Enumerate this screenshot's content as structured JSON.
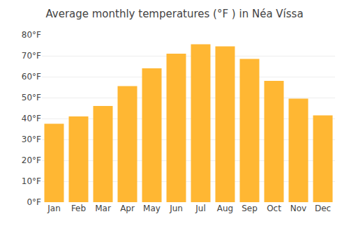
{
  "chart_data": {
    "type": "bar",
    "title": "Average monthly temperatures (°F ) in Néa Víssa",
    "categories": [
      "Jan",
      "Feb",
      "Mar",
      "Apr",
      "May",
      "Jun",
      "Jul",
      "Aug",
      "Sep",
      "Oct",
      "Nov",
      "Dec"
    ],
    "values": [
      37.5,
      41.0,
      46.0,
      55.5,
      64.0,
      71.0,
      75.5,
      74.5,
      68.5,
      58.0,
      49.5,
      41.5
    ],
    "color": "#FFB733",
    "ylim": [
      0,
      80
    ],
    "yticks": [
      {
        "value": 0,
        "label": "0°F"
      },
      {
        "value": 10,
        "label": "10°F"
      },
      {
        "value": 20,
        "label": "20°F"
      },
      {
        "value": 30,
        "label": "30°F"
      },
      {
        "value": 40,
        "label": "40°F"
      },
      {
        "value": 50,
        "label": "50°F"
      },
      {
        "value": 60,
        "label": "60°F"
      },
      {
        "value": 70,
        "label": "70°F"
      },
      {
        "value": 80,
        "label": "80°F"
      }
    ],
    "grid": true
  }
}
